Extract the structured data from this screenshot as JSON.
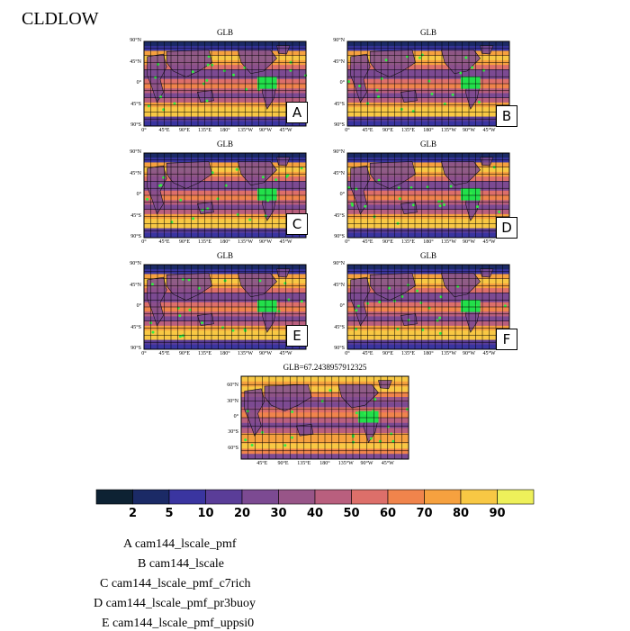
{
  "page_title": "CLDLOW",
  "panels": [
    {
      "title": "GLB",
      "letter": "A"
    },
    {
      "title": "GLB",
      "letter": "B"
    },
    {
      "title": "GLB",
      "letter": "C"
    },
    {
      "title": "GLB",
      "letter": "D"
    },
    {
      "title": "GLB",
      "letter": "E"
    },
    {
      "title": "GLB",
      "letter": "F"
    },
    {
      "title": "GLB=67.2438957912325",
      "letter": ""
    }
  ],
  "axis_labels": {
    "lat_small": [
      "90°N",
      "45°N",
      "0°",
      "45°S",
      "90°S"
    ],
    "lon_small": [
      "0°",
      "45°E",
      "90°E",
      "135°E",
      "180°",
      "135°W",
      "90°W",
      "45°W"
    ],
    "lat_bottom": [
      "60°N",
      "30°N",
      "0°",
      "30°S",
      "60°S"
    ],
    "lon_bottom": [
      "45°E",
      "90°E",
      "135°E",
      "180°",
      "135°W",
      "90°W",
      "45°W"
    ]
  },
  "legend": {
    "colors": [
      "#0d2233",
      "#1b2a66",
      "#3a35a0",
      "#5a3d98",
      "#7c4a92",
      "#985588",
      "#b95f7e",
      "#dd6f6a",
      "#f0844c",
      "#f6a13f",
      "#f8c844",
      "#eef05a"
    ],
    "labels": [
      "2",
      "5",
      "10",
      "20",
      "30",
      "40",
      "50",
      "60",
      "70",
      "80",
      "90"
    ]
  },
  "captions": [
    "A  cam144_lscale_pmf",
    "B  cam144_lscale",
    "C  cam144_lscale_pmf_c7rich",
    "D  cam144_lscale_pmf_pr3buoy",
    "E  cam144_lscale_pmf_uppsi0"
  ],
  "chart_data": {
    "type": "heatmap",
    "variable": "CLDLOW",
    "maps": [
      {
        "letter": "A",
        "title": "GLB",
        "lat_range": [
          -90,
          90
        ],
        "lon_range": [
          0,
          360
        ]
      },
      {
        "letter": "B",
        "title": "GLB",
        "lat_range": [
          -90,
          90
        ],
        "lon_range": [
          0,
          360
        ]
      },
      {
        "letter": "C",
        "title": "GLB",
        "lat_range": [
          -90,
          90
        ],
        "lon_range": [
          0,
          360
        ]
      },
      {
        "letter": "D",
        "title": "GLB",
        "lat_range": [
          -90,
          90
        ],
        "lon_range": [
          0,
          360
        ]
      },
      {
        "letter": "E",
        "title": "GLB",
        "lat_range": [
          -90,
          90
        ],
        "lon_range": [
          0,
          360
        ]
      },
      {
        "letter": "F",
        "title": "GLB",
        "lat_range": [
          -90,
          90
        ],
        "lon_range": [
          0,
          360
        ]
      },
      {
        "letter": "",
        "title": "GLB=67.2438957912325",
        "global_mean": 67.2438957912325,
        "lat_range": [
          -75,
          75
        ],
        "lon_range": [
          0,
          360
        ]
      }
    ],
    "colorbar_levels": [
      2,
      5,
      10,
      20,
      30,
      40,
      50,
      60,
      70,
      80,
      90
    ]
  }
}
